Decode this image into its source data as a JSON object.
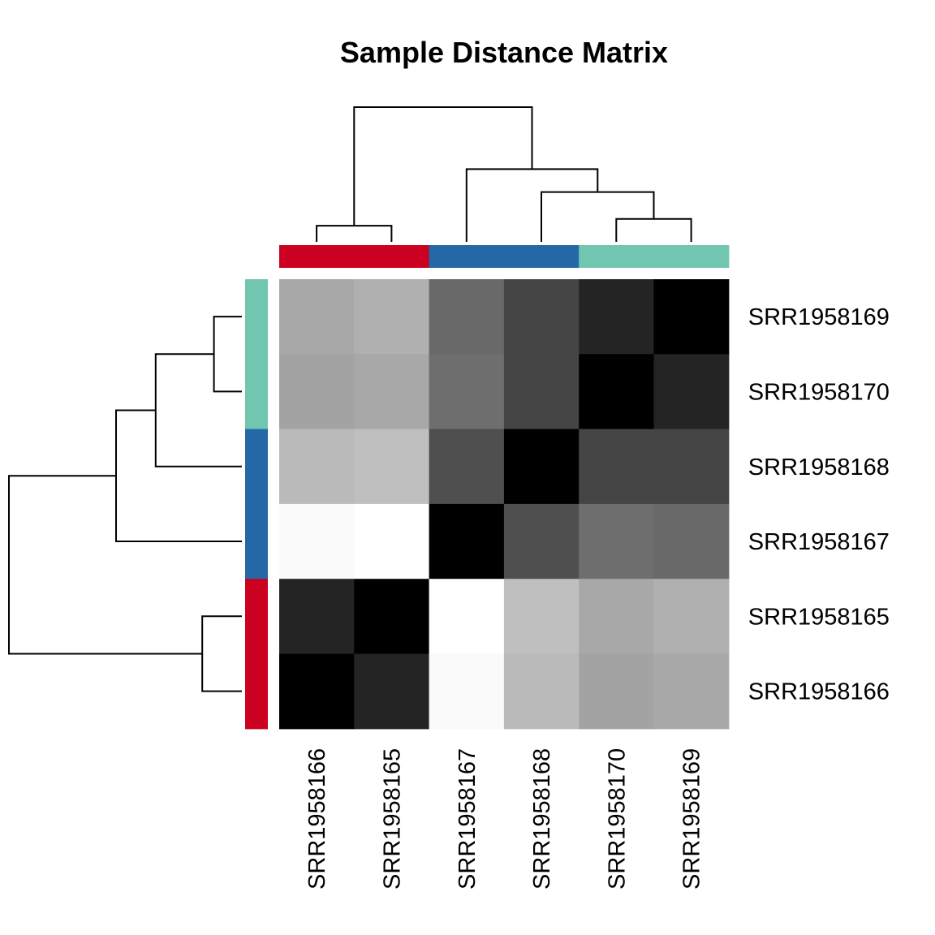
{
  "chart_data": {
    "type": "heatmap",
    "title": "Sample Distance Matrix",
    "row_labels": [
      "SRR1958169",
      "SRR1958170",
      "SRR1958168",
      "SRR1958167",
      "SRR1958165",
      "SRR1958166"
    ],
    "col_labels": [
      "SRR1958166",
      "SRR1958165",
      "SRR1958167",
      "SRR1958168",
      "SRR1958170",
      "SRR1958169"
    ],
    "values": [
      [
        0.66,
        0.69,
        0.41,
        0.27,
        0.14,
        0.0
      ],
      [
        0.64,
        0.66,
        0.43,
        0.27,
        0.0,
        0.14
      ],
      [
        0.73,
        0.75,
        0.31,
        0.0,
        0.27,
        0.27
      ],
      [
        0.98,
        1.0,
        0.0,
        0.31,
        0.43,
        0.41
      ],
      [
        0.14,
        0.0,
        1.0,
        0.75,
        0.66,
        0.69
      ],
      [
        0.0,
        0.14,
        0.98,
        0.73,
        0.64,
        0.66
      ]
    ],
    "color_scale": {
      "low": "#000000",
      "high": "#ffffff"
    },
    "col_groups": [
      0,
      0,
      1,
      1,
      2,
      2
    ],
    "row_groups": [
      2,
      2,
      1,
      1,
      0,
      0
    ],
    "group_colors": [
      "#CC0020",
      "#2468A8",
      "#72C5AF"
    ],
    "col_dendrogram": [
      [
        0,
        1,
        0.12
      ],
      [
        4,
        5,
        0.17
      ],
      [
        3,
        -2,
        0.37
      ],
      [
        2,
        -3,
        0.54
      ],
      [
        -1,
        -4,
        1.0
      ]
    ],
    "row_dendrogram": [
      [
        0,
        1,
        0.12
      ],
      [
        4,
        5,
        0.17
      ],
      [
        2,
        -1,
        0.37
      ],
      [
        3,
        -3,
        0.54
      ],
      [
        -4,
        -2,
        1.0
      ]
    ],
    "legend": "none"
  }
}
